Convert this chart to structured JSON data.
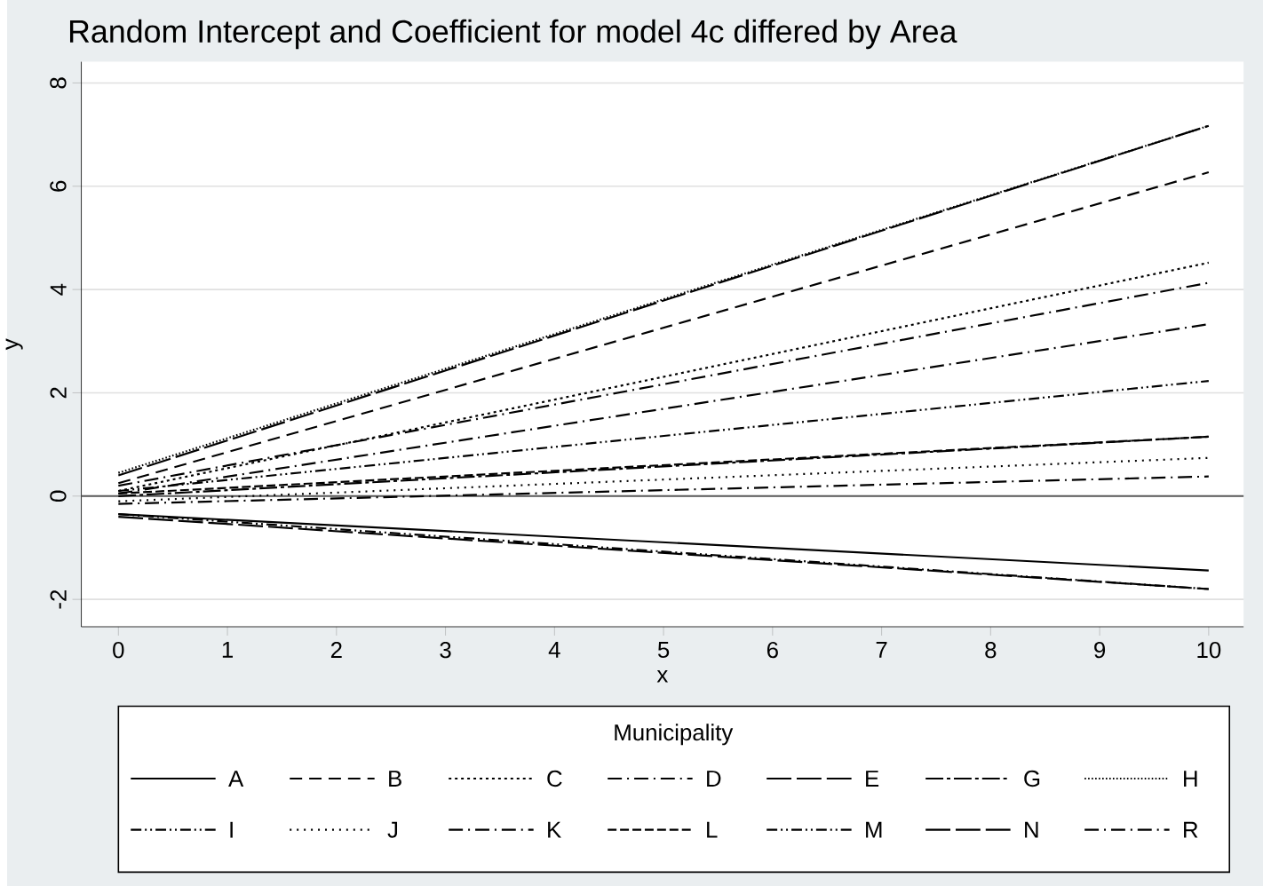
{
  "chart_data": {
    "type": "line",
    "title": "Random Intercept and Coefficient for model 4c differed by Area",
    "xlabel": "x",
    "ylabel": "y",
    "legend_title": "Municipality",
    "x": [
      0,
      10
    ],
    "xlim": [
      -0.34,
      10.32
    ],
    "ylim": [
      -2.53,
      8.41
    ],
    "xticks": [
      0,
      1,
      2,
      3,
      4,
      5,
      6,
      7,
      8,
      9,
      10
    ],
    "yticks": [
      -2,
      0,
      2,
      4,
      6,
      8
    ],
    "grid": "y",
    "legend": "bottom",
    "marker": "none",
    "ref_lines": [
      {
        "axis": "y",
        "value": 0,
        "color": "#5a5a5a"
      }
    ],
    "series": [
      {
        "name": "A",
        "color": "#000000",
        "line_style": "solid",
        "values": [
          -0.35,
          -1.44
        ]
      },
      {
        "name": "B",
        "color": "#000000",
        "line_style": "dashed",
        "values": [
          0.25,
          6.27
        ]
      },
      {
        "name": "C",
        "color": "#000000",
        "line_style": "dotted",
        "values": [
          0.1,
          4.52
        ]
      },
      {
        "name": "D",
        "color": "#000000",
        "line_style": "dashdotted",
        "values": [
          0.2,
          4.13
        ]
      },
      {
        "name": "E",
        "color": "#000000",
        "line_style": "loosely dashed",
        "values": [
          0.4,
          7.17
        ]
      },
      {
        "name": "G",
        "color": "#000000",
        "line_style": "densely dashdotted",
        "values": [
          0.0,
          1.15
        ]
      },
      {
        "name": "H",
        "color": "#000000",
        "line_style": "densely dotted",
        "values": [
          0.45,
          7.17
        ]
      },
      {
        "name": "I",
        "color": "#000000",
        "line_style": "dashdotdotted",
        "values": [
          0.1,
          2.23
        ]
      },
      {
        "name": "J",
        "color": "#000000",
        "line_style": "loosely dotted",
        "values": [
          -0.1,
          0.74
        ]
      },
      {
        "name": "K",
        "color": "#000000",
        "line_style": "dashdotted",
        "values": [
          0.05,
          3.33
        ]
      },
      {
        "name": "L",
        "color": "#000000",
        "line_style": "densely dashed",
        "values": [
          0.05,
          1.15
        ]
      },
      {
        "name": "M",
        "color": "#000000",
        "line_style": "dashdotdotted",
        "values": [
          -0.35,
          -1.8
        ]
      },
      {
        "name": "N",
        "color": "#000000",
        "line_style": "loosely dashed",
        "values": [
          -0.4,
          -1.8
        ]
      },
      {
        "name": "R",
        "color": "#000000",
        "line_style": "dashdotted",
        "values": [
          -0.15,
          0.38
        ]
      }
    ]
  }
}
